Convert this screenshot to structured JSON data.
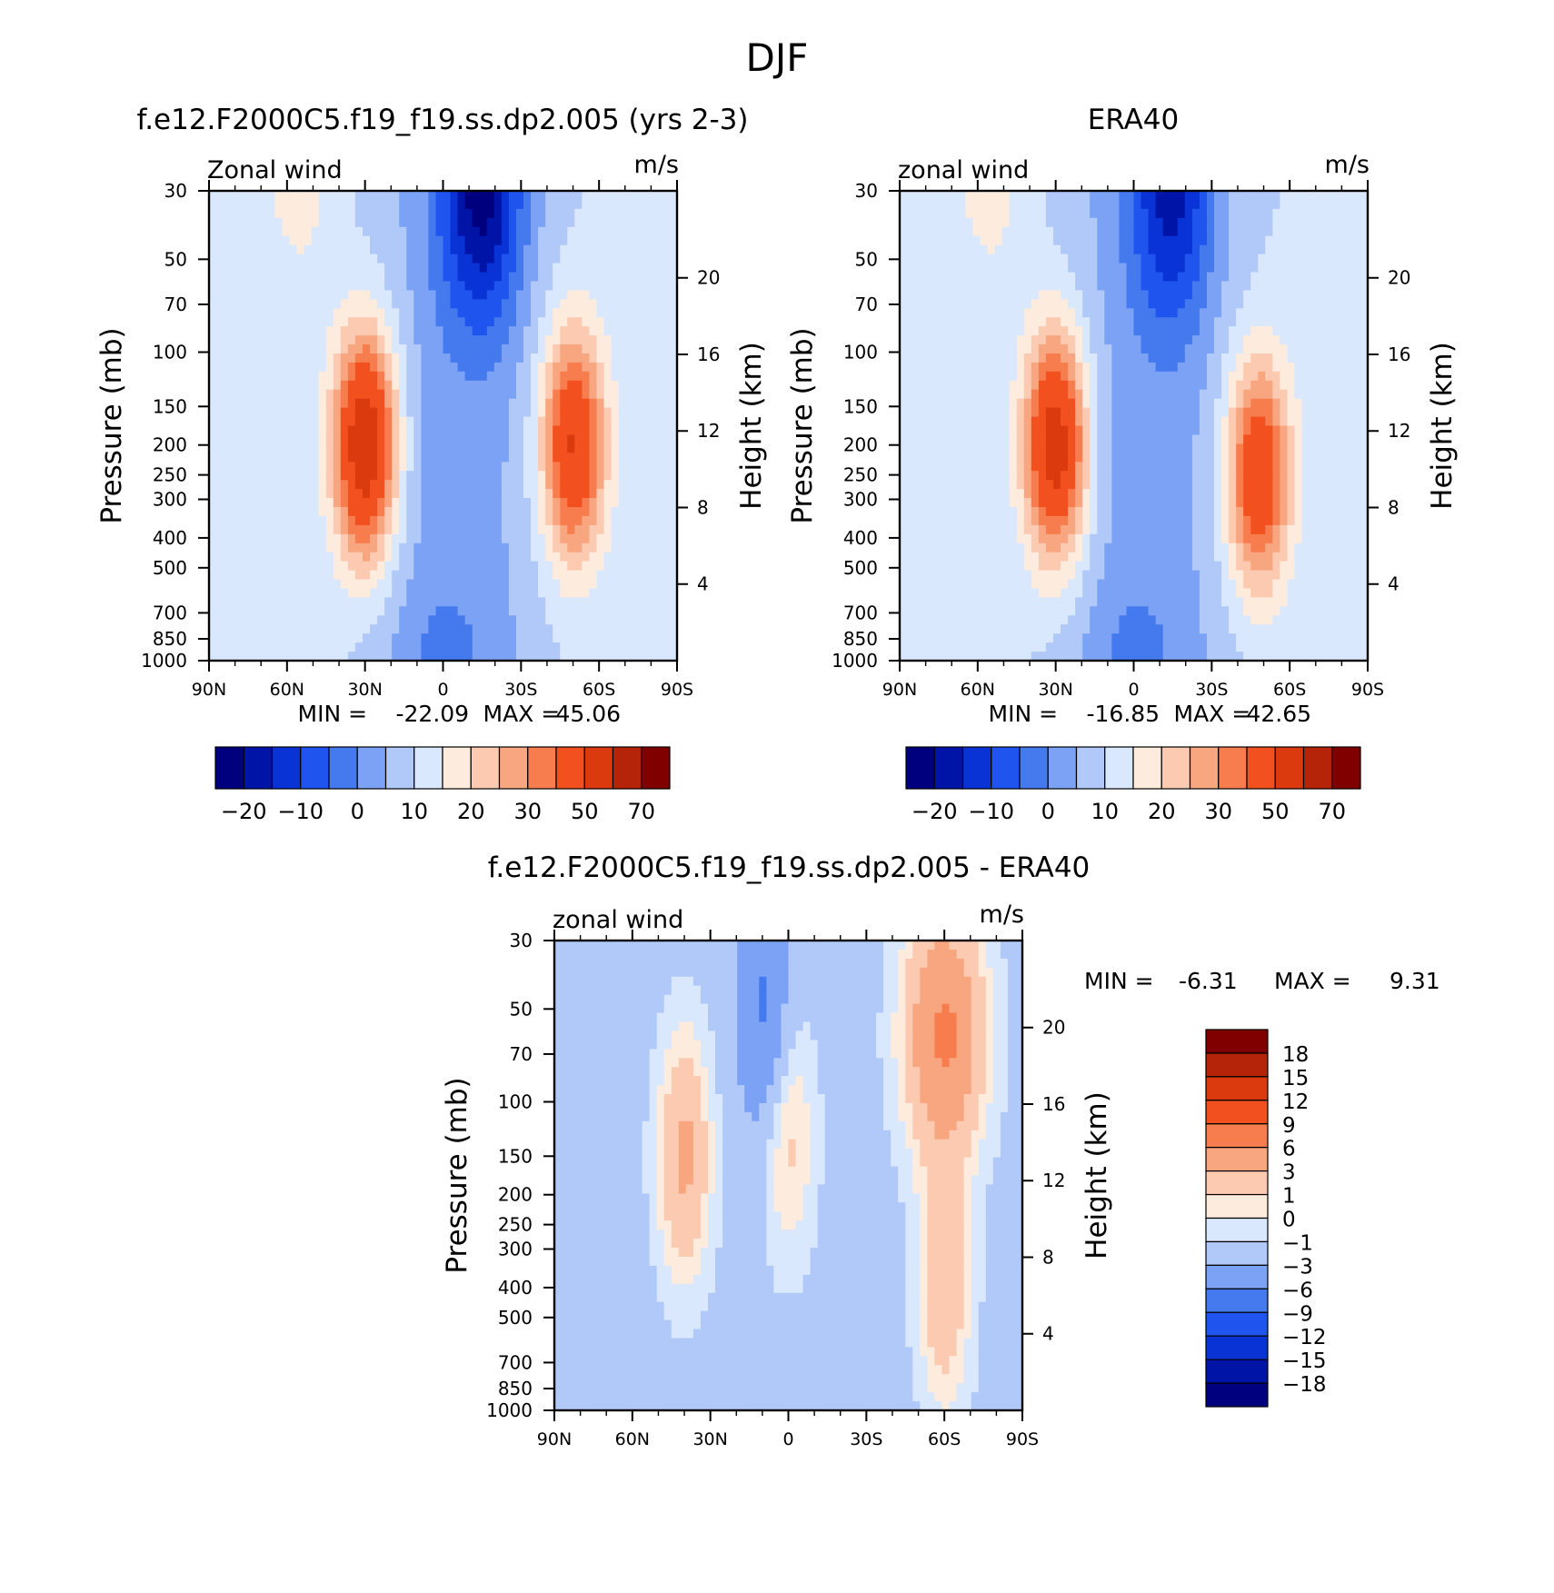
{
  "figure_title": "DJF",
  "chart_data": [
    {
      "type": "heatmap",
      "title": "f.e12.F2000C5.f19_f19.ss.dp2.005 (yrs 2-3)",
      "variable_label": "Zonal wind",
      "units": "m/s",
      "xlabel": "",
      "ylabel": "Pressure (mb)",
      "right_label": "Height (km)",
      "x_ticks": [
        "90N",
        "60N",
        "30N",
        "0",
        "30S",
        "60S",
        "90S"
      ],
      "y_ticks": [
        "30",
        "50",
        "70",
        "100",
        "150",
        "200",
        "250",
        "300",
        "400",
        "500",
        "700",
        "850",
        "1000"
      ],
      "height_ticks": [
        "20",
        "16",
        "12",
        "8",
        "4"
      ],
      "ylim": [
        1000,
        30
      ],
      "min_label": "MIN =",
      "max_label": "MAX =",
      "min": "-22.09",
      "max": "45.06",
      "jets": [
        {
          "lat": 30,
          "pressure": 200,
          "peak": 45
        },
        {
          "lat": -50,
          "pressure": 200,
          "peak": 36
        }
      ],
      "easterly_min": {
        "lat": -15,
        "pressure": 30,
        "value": -22
      },
      "colorbar": {
        "levels": [
          "-20",
          "-10",
          "0",
          "10",
          "20",
          "30",
          "50",
          "70"
        ],
        "colors": [
          "#00007f",
          "#0014a8",
          "#0a33d6",
          "#1f55ee",
          "#4579ee",
          "#7ba2f5",
          "#b0c9f8",
          "#d9e8fc",
          "#fdebdd",
          "#fccab1",
          "#f8a680",
          "#f77c4e",
          "#f2501f",
          "#db3a0e",
          "#b52408",
          "#800000"
        ]
      }
    },
    {
      "type": "heatmap",
      "title": "ERA40",
      "variable_label": "zonal wind",
      "units": "m/s",
      "xlabel": "",
      "ylabel": "Pressure (mb)",
      "right_label": "Height (km)",
      "x_ticks": [
        "90N",
        "60N",
        "30N",
        "0",
        "30S",
        "60S",
        "90S"
      ],
      "y_ticks": [
        "30",
        "50",
        "70",
        "100",
        "150",
        "200",
        "250",
        "300",
        "400",
        "500",
        "700",
        "850",
        "1000"
      ],
      "height_ticks": [
        "20",
        "16",
        "12",
        "8",
        "4"
      ],
      "ylim": [
        1000,
        30
      ],
      "min_label": "MIN =",
      "max_label": "MAX =",
      "min": "-16.85",
      "max": "42.65",
      "jets": [
        {
          "lat": 30,
          "pressure": 200,
          "peak": 42
        },
        {
          "lat": -48,
          "pressure": 250,
          "peak": 34
        }
      ],
      "easterly_min": {
        "lat": -15,
        "pressure": 30,
        "value": -17
      },
      "colorbar": {
        "levels": [
          "-20",
          "-10",
          "0",
          "10",
          "20",
          "30",
          "50",
          "70"
        ],
        "colors": [
          "#00007f",
          "#0014a8",
          "#0a33d6",
          "#1f55ee",
          "#4579ee",
          "#7ba2f5",
          "#b0c9f8",
          "#d9e8fc",
          "#fdebdd",
          "#fccab1",
          "#f8a680",
          "#f77c4e",
          "#f2501f",
          "#db3a0e",
          "#b52408",
          "#800000"
        ]
      }
    },
    {
      "type": "heatmap",
      "title": "f.e12.F2000C5.f19_f19.ss.dp2.005 - ERA40",
      "variable_label": "zonal wind",
      "units": "m/s",
      "xlabel": "",
      "ylabel": "Pressure (mb)",
      "right_label": "Height (km)",
      "x_ticks": [
        "90N",
        "60N",
        "30N",
        "0",
        "30S",
        "60S",
        "90S"
      ],
      "y_ticks": [
        "30",
        "50",
        "70",
        "100",
        "150",
        "200",
        "250",
        "300",
        "400",
        "500",
        "700",
        "850",
        "1000"
      ],
      "height_ticks": [
        "20",
        "16",
        "12",
        "8",
        "4"
      ],
      "ylim": [
        1000,
        30
      ],
      "min_label": "MIN =",
      "max_label": "MAX =",
      "min": "-6.31",
      "max": "9.31",
      "features": [
        {
          "lat": 40,
          "pressure": 150,
          "value": 5
        },
        {
          "lat": 0,
          "pressure": 130,
          "value": 3
        },
        {
          "lat": -60,
          "pressure": 60,
          "value": 8
        },
        {
          "lat": 10,
          "pressure": 50,
          "value": -5
        },
        {
          "lat": -60,
          "pressure": 400,
          "value": 4
        }
      ],
      "colorbar": {
        "levels": [
          "18",
          "15",
          "12",
          "9",
          "6",
          "3",
          "1",
          "0",
          "-1",
          "-3",
          "-6",
          "-9",
          "-12",
          "-15",
          "-18"
        ],
        "colors": [
          "#800000",
          "#b52408",
          "#db3a0e",
          "#f2501f",
          "#f77c4e",
          "#f8a680",
          "#fccab1",
          "#fdebdd",
          "#d9e8fc",
          "#b0c9f8",
          "#7ba2f5",
          "#4579ee",
          "#1f55ee",
          "#0a33d6",
          "#0014a8",
          "#00007f"
        ]
      }
    }
  ]
}
